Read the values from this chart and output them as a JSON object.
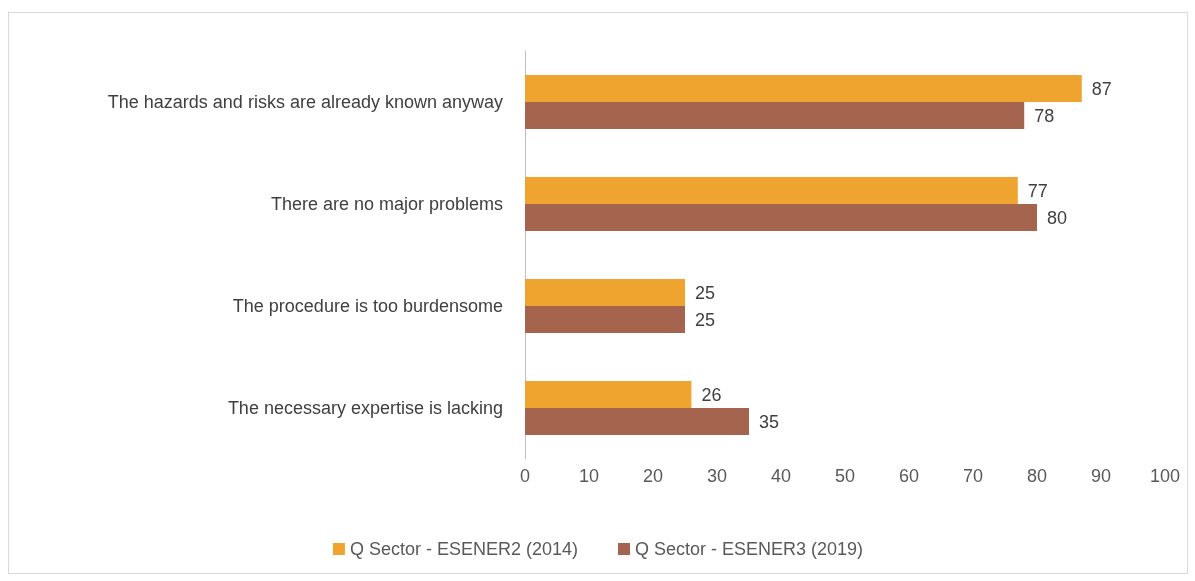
{
  "chart_data": {
    "type": "bar",
    "orientation": "horizontal",
    "categories": [
      "The hazards and risks are already known anyway",
      "There are no major problems",
      "The procedure is too burdensome",
      "The necessary expertise is lacking"
    ],
    "series": [
      {
        "name": "Q Sector - ESENER2 (2014)",
        "color": "#f0a430",
        "values": [
          87,
          77,
          25,
          26
        ]
      },
      {
        "name": "Q Sector - ESENER3 (2019)",
        "color": "#a5644e",
        "values": [
          78,
          80,
          25,
          35
        ]
      }
    ],
    "xlim": [
      0,
      100
    ],
    "xticks": [
      0,
      10,
      20,
      30,
      40,
      50,
      60,
      70,
      80,
      90,
      100
    ],
    "data_labels": true,
    "grid": false,
    "legend": "bottom"
  }
}
